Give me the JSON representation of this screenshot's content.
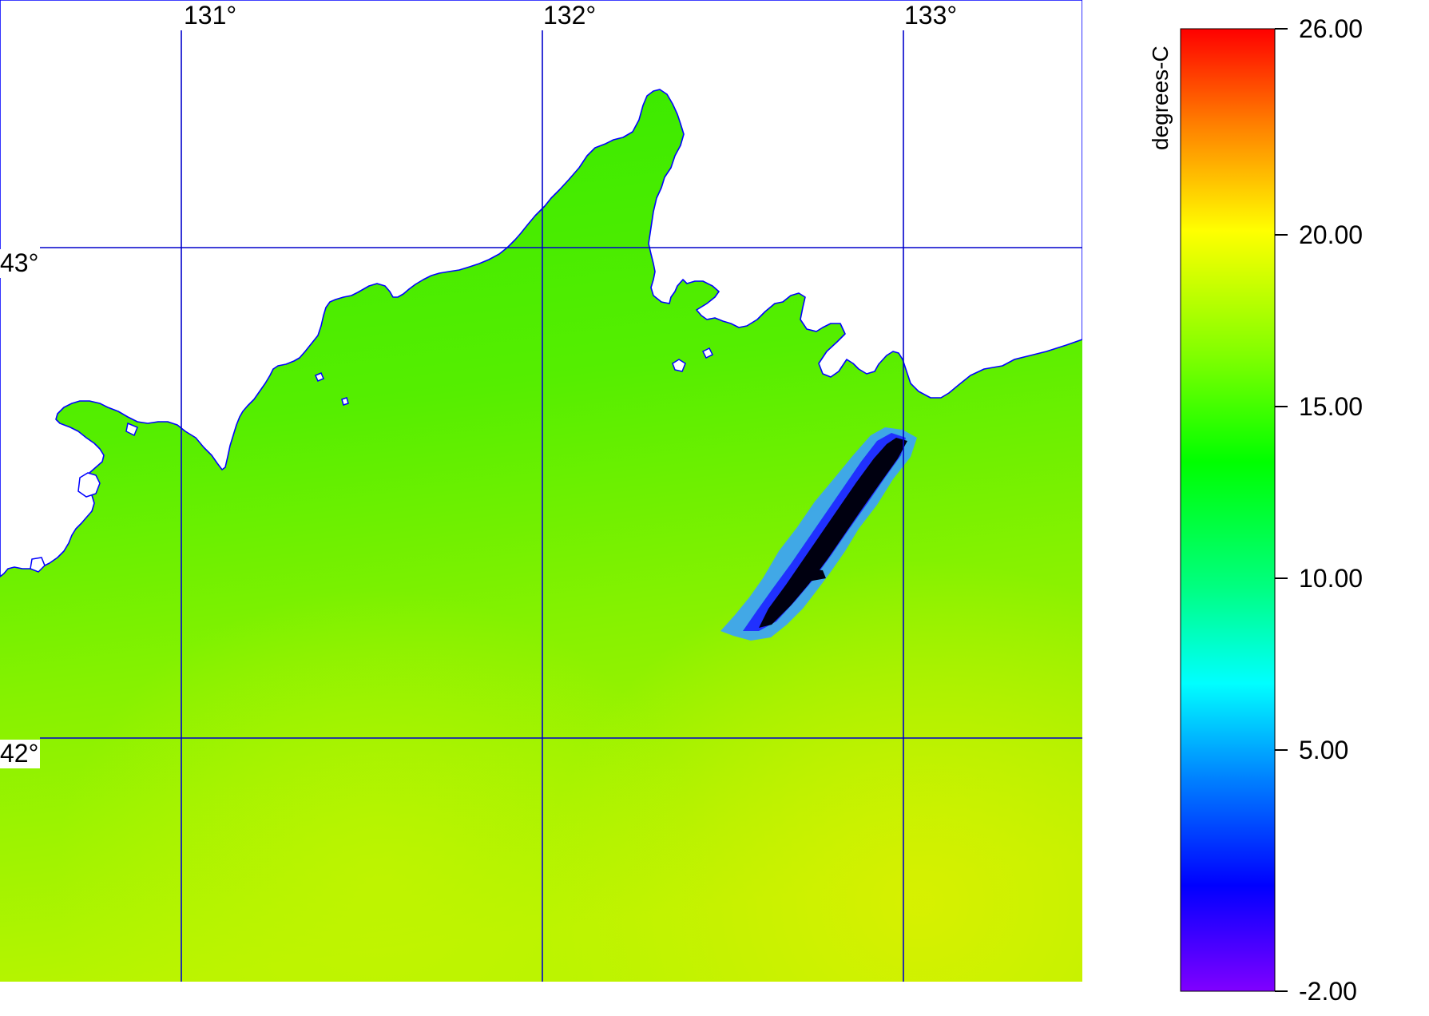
{
  "map": {
    "longitude_labels": [
      "131°",
      "132°",
      "133°"
    ],
    "latitude_labels": [
      "43°",
      "42°"
    ],
    "grid_color": "#0000cc",
    "coastline_color": "#0000ff",
    "land_color": "#ffffff",
    "feature": "cold SST anomaly / cloud streak near 132.5–133.1°E, 42.3–42.7°N"
  },
  "colorbar": {
    "title": "degrees-C",
    "ticks": [
      "26.00",
      "20.00",
      "15.00",
      "10.00",
      "5.00",
      "-2.00"
    ],
    "min": -2,
    "max": 26,
    "colors": [
      "#8000ff",
      "#0000ff",
      "#0080ff",
      "#00ffff",
      "#00ff80",
      "#00ff00",
      "#80ff00",
      "#ffff00",
      "#ff8000",
      "#ff0000"
    ]
  }
}
